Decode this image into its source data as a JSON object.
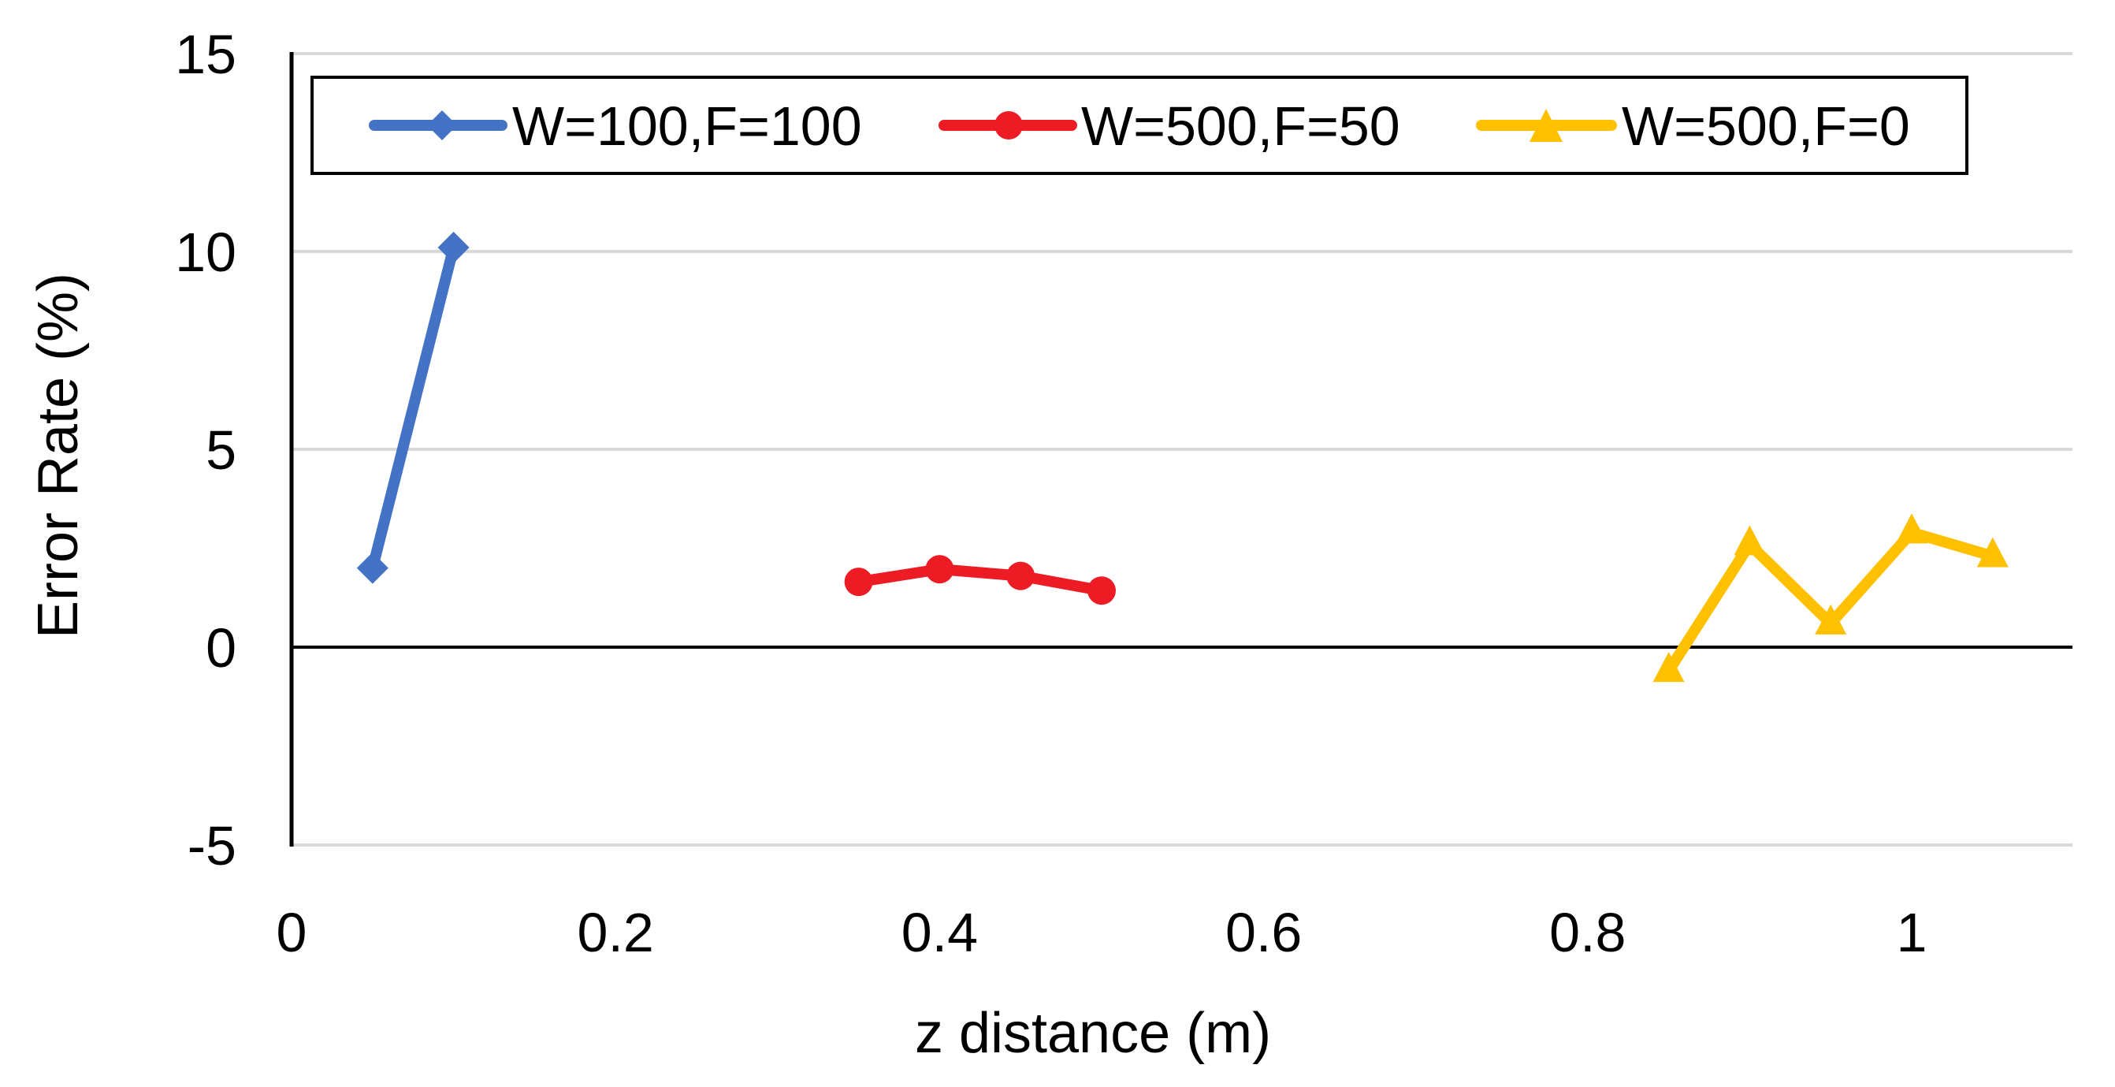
{
  "chart_data": {
    "type": "line",
    "title": "",
    "xlabel": "z distance (m)",
    "ylabel": "Error Rate (%)",
    "xlim": [
      0,
      1.1
    ],
    "ylim": [
      -5,
      15
    ],
    "x_ticks": [
      "0",
      "0.2",
      "0.4",
      "0.6",
      "0.8",
      "1"
    ],
    "x_tick_values": [
      0,
      0.2,
      0.4,
      0.6,
      0.8,
      1.0
    ],
    "y_ticks": [
      "15",
      "10",
      "5",
      "0",
      "-5"
    ],
    "y_tick_values": [
      15,
      10,
      5,
      0,
      -5
    ],
    "grid": {
      "horizontal": true,
      "vertical": false,
      "color": "#d9d9d9"
    },
    "legend_position": "top-inside",
    "series": [
      {
        "name": "W=100,F=100",
        "color": "#4472c4",
        "marker": "diamond",
        "x": [
          0.05,
          0.1
        ],
        "y": [
          2.0,
          10.1
        ]
      },
      {
        "name": "W=500,F=50",
        "color": "#ed1c24",
        "marker": "circle",
        "x": [
          0.35,
          0.4,
          0.45,
          0.5
        ],
        "y": [
          1.65,
          1.97,
          1.8,
          1.43
        ]
      },
      {
        "name": "W=500,F=0",
        "color": "#ffc000",
        "marker": "triangle",
        "x": [
          0.85,
          0.9,
          0.95,
          1.0,
          1.05
        ],
        "y": [
          -0.6,
          2.6,
          0.6,
          2.9,
          2.3
        ]
      }
    ]
  },
  "legend": {
    "items": [
      {
        "label": "W=100,F=100"
      },
      {
        "label": "W=500,F=50"
      },
      {
        "label": "W=500,F=0"
      }
    ]
  }
}
